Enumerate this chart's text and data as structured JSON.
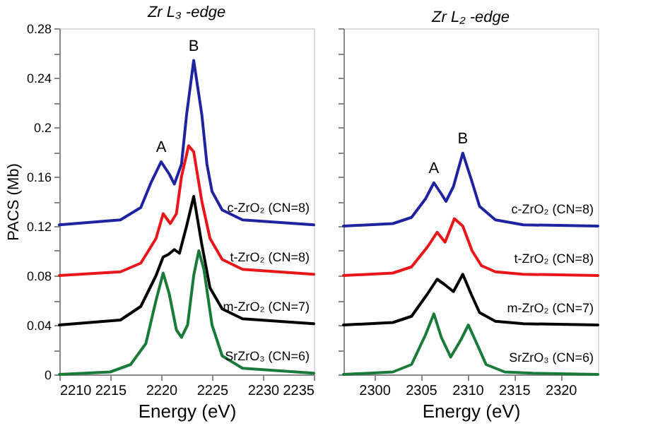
{
  "chart_data": [
    {
      "type": "line",
      "title": "Zr L₃ -edge",
      "ylabel": "PACS (Mb)",
      "xlabel": "Energy (eV)",
      "xlim": [
        2210,
        2235
      ],
      "xticks": [
        2210,
        2215,
        2220,
        2225,
        2230,
        2235
      ],
      "ylim": [
        0,
        0.28
      ],
      "yticks": [
        0,
        {
          "value": 0.02,
          "label": null
        },
        0.04,
        {
          "value": 0.06,
          "label": null
        },
        0.08,
        {
          "value": 0.1,
          "label": null
        },
        0.12,
        {
          "value": 0.14,
          "label": null
        },
        0.16,
        {
          "value": 0.18,
          "label": null
        },
        0.2,
        {
          "value": 0.22,
          "label": null
        },
        0.24,
        {
          "value": 0.26,
          "label": null
        },
        0.28
      ],
      "legend": false,
      "grid": false,
      "series": [
        {
          "name": "c-ZrO₂ (CN=8)",
          "color": "#1f23a0",
          "x": [
            2210,
            2216,
            2218,
            2219,
            2220,
            2220.8,
            2221.3,
            2222,
            2222.5,
            2223.2,
            2224,
            2224.5,
            2225,
            2226,
            2228,
            2235
          ],
          "values": [
            0.121,
            0.125,
            0.135,
            0.155,
            0.172,
            0.162,
            0.154,
            0.17,
            0.21,
            0.254,
            0.21,
            0.17,
            0.148,
            0.133,
            0.125,
            0.121
          ]
        },
        {
          "name": "t-ZrO₂ (CN=8)",
          "color": "#e8161b",
          "x": [
            2210,
            2216,
            2218,
            2219.5,
            2220.2,
            2220.9,
            2221.5,
            2222,
            2222.7,
            2223.2,
            2224,
            2224.8,
            2226,
            2228,
            2235
          ],
          "values": [
            0.08,
            0.083,
            0.09,
            0.11,
            0.13,
            0.122,
            0.13,
            0.16,
            0.185,
            0.18,
            0.14,
            0.11,
            0.093,
            0.085,
            0.081
          ]
        },
        {
          "name": "m-ZrO₂ (CN=7)",
          "color": "#000000",
          "x": [
            2210,
            2216,
            2218,
            2219.5,
            2220.2,
            2220.7,
            2221.3,
            2221.8,
            2222.5,
            2223.2,
            2224,
            2224.8,
            2226,
            2228,
            2235
          ],
          "values": [
            0.04,
            0.044,
            0.055,
            0.08,
            0.095,
            0.097,
            0.101,
            0.098,
            0.12,
            0.144,
            0.105,
            0.07,
            0.053,
            0.045,
            0.041
          ]
        },
        {
          "name": "SrZrO₃ (CN=6)",
          "color": "#1a7a3a",
          "x": [
            2210,
            2215,
            2217,
            2218.5,
            2219.5,
            2220.2,
            2220.8,
            2221.5,
            2222,
            2222.6,
            2223.2,
            2223.7,
            2224.2,
            2225,
            2226,
            2228,
            2235
          ],
          "values": [
            0,
            0.002,
            0.008,
            0.025,
            0.06,
            0.082,
            0.065,
            0.036,
            0.03,
            0.04,
            0.08,
            0.1,
            0.085,
            0.04,
            0.015,
            0.005,
            0.001
          ]
        }
      ],
      "annotations": [
        {
          "text": "A",
          "x": 2220,
          "y": 0.172
        },
        {
          "text": "B",
          "x": 2223.2,
          "y": 0.254
        }
      ]
    },
    {
      "type": "line",
      "title": "Zr L₂ -edge",
      "xlabel": "Energy (eV)",
      "xlim": [
        2296.7,
        2324
      ],
      "xticks": [
        2300,
        2305,
        2310,
        2315,
        2320
      ],
      "ylim": [
        0,
        0.28
      ],
      "yticks": [
        0,
        {
          "value": 0.02,
          "label": null
        },
        0.04,
        {
          "value": 0.06,
          "label": null
        },
        0.08,
        {
          "value": 0.1,
          "label": null
        },
        0.12,
        {
          "value": 0.14,
          "label": null
        },
        0.16,
        {
          "value": 0.18,
          "label": null
        },
        0.2,
        {
          "value": 0.22,
          "label": null
        },
        0.24,
        {
          "value": 0.26,
          "label": null
        },
        0.28
      ],
      "tick_labels": "x",
      "legend": false,
      "grid": false,
      "series": [
        {
          "name": "c-ZrO₂ (CN=8)",
          "color": "#1f23a0",
          "x": [
            2296.7,
            2302,
            2304,
            2305.5,
            2306.4,
            2307.2,
            2307.7,
            2308.5,
            2309.5,
            2310.4,
            2311.3,
            2313,
            2316,
            2324
          ],
          "values": [
            0.12,
            0.122,
            0.127,
            0.142,
            0.155,
            0.146,
            0.14,
            0.152,
            0.179,
            0.158,
            0.136,
            0.125,
            0.121,
            0.12
          ]
        },
        {
          "name": "t-ZrO₂ (CN=8)",
          "color": "#e8161b",
          "x": [
            2296.7,
            2302,
            2304,
            2305.7,
            2306.75,
            2307.6,
            2308.6,
            2309.5,
            2310.5,
            2311.5,
            2313,
            2316,
            2324
          ],
          "values": [
            0.08,
            0.082,
            0.087,
            0.103,
            0.115,
            0.107,
            0.126,
            0.12,
            0.1,
            0.088,
            0.083,
            0.081,
            0.08
          ]
        },
        {
          "name": "m-ZrO₂ (CN=7)",
          "color": "#000000",
          "x": [
            2296.7,
            2302,
            2304,
            2305.7,
            2306.75,
            2307.5,
            2308.5,
            2309.5,
            2310.4,
            2311.3,
            2313,
            2316,
            2324
          ],
          "values": [
            0.04,
            0.042,
            0.047,
            0.065,
            0.077,
            0.073,
            0.067,
            0.081,
            0.065,
            0.05,
            0.043,
            0.041,
            0.04
          ]
        },
        {
          "name": "SrZrO₃ (CN=6)",
          "color": "#1a7a3a",
          "x": [
            2296.7,
            2302,
            2304,
            2305.5,
            2306.4,
            2307.2,
            2308.2,
            2309.3,
            2310.1,
            2311,
            2312,
            2314,
            2317,
            2324
          ],
          "values": [
            0,
            0.002,
            0.008,
            0.032,
            0.049,
            0.03,
            0.014,
            0.028,
            0.04,
            0.025,
            0.008,
            0.002,
            0.001,
            0
          ]
        }
      ],
      "annotations": [
        {
          "text": "A",
          "x": 2306.4,
          "y": 0.155
        },
        {
          "text": "B",
          "x": 2309.5,
          "y": 0.179
        }
      ]
    }
  ]
}
